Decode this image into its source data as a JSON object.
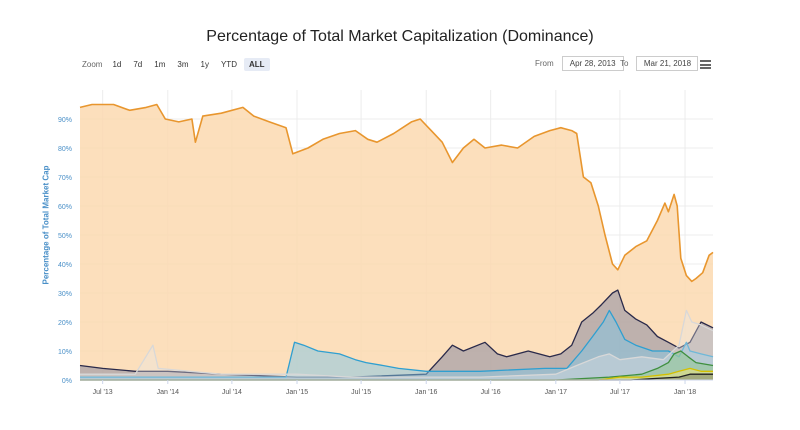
{
  "title": "Percentage of Total Market Capitalization (Dominance)",
  "zoom": {
    "label": "Zoom",
    "buttons": [
      "1d",
      "7d",
      "1m",
      "3m",
      "1y",
      "YTD",
      "ALL"
    ],
    "active": "ALL"
  },
  "range": {
    "from_label": "From",
    "from_value": "Apr 28, 2013",
    "to_label": "To",
    "to_value": "Mar 21, 2018"
  },
  "menu_icon": "hamburger-menu-icon",
  "chart_data": {
    "type": "area",
    "title": "Percentage of Total Market Capitalization (Dominance)",
    "ylabel": "Percentage of Total Market Cap",
    "xlabel": "",
    "ylim": [
      0,
      100
    ],
    "xlim": [
      "2013-04-28",
      "2018-03-21"
    ],
    "y_ticks": [
      "0%",
      "10%",
      "20%",
      "30%",
      "40%",
      "50%",
      "60%",
      "70%",
      "80%",
      "90%"
    ],
    "x_ticks": [
      {
        "label": "Jul '13",
        "date": "2013-07-01"
      },
      {
        "label": "Jan '14",
        "date": "2014-01-01"
      },
      {
        "label": "Jul '14",
        "date": "2014-07-01"
      },
      {
        "label": "Jan '15",
        "date": "2015-01-01"
      },
      {
        "label": "Jul '15",
        "date": "2015-07-01"
      },
      {
        "label": "Jan '16",
        "date": "2016-01-01"
      },
      {
        "label": "Jul '16",
        "date": "2016-07-01"
      },
      {
        "label": "Jan '17",
        "date": "2017-01-01"
      },
      {
        "label": "Jul '17",
        "date": "2017-07-01"
      },
      {
        "label": "Jan '18",
        "date": "2018-01-01"
      }
    ],
    "grid": true,
    "legend": "none",
    "series": [
      {
        "color": "#e8962e",
        "fill": "#fbd9b0",
        "fill_opacity": 0.85,
        "values": [
          [
            "2013-04-28",
            94
          ],
          [
            "2013-06-01",
            95
          ],
          [
            "2013-08-01",
            95
          ],
          [
            "2013-09-15",
            93
          ],
          [
            "2013-11-01",
            94
          ],
          [
            "2013-12-01",
            95
          ],
          [
            "2013-12-25",
            90
          ],
          [
            "2014-02-01",
            89
          ],
          [
            "2014-03-10",
            90
          ],
          [
            "2014-03-20",
            82
          ],
          [
            "2014-04-10",
            91
          ],
          [
            "2014-06-01",
            92
          ],
          [
            "2014-08-01",
            94
          ],
          [
            "2014-09-01",
            91
          ],
          [
            "2014-10-15",
            89
          ],
          [
            "2014-12-01",
            87
          ],
          [
            "2014-12-20",
            78
          ],
          [
            "2015-02-01",
            80
          ],
          [
            "2015-03-15",
            83
          ],
          [
            "2015-05-01",
            85
          ],
          [
            "2015-06-15",
            86
          ],
          [
            "2015-07-20",
            83
          ],
          [
            "2015-08-15",
            82
          ],
          [
            "2015-10-01",
            85
          ],
          [
            "2015-11-20",
            89
          ],
          [
            "2015-12-15",
            90
          ],
          [
            "2016-01-15",
            86
          ],
          [
            "2016-02-15",
            82
          ],
          [
            "2016-03-15",
            75
          ],
          [
            "2016-04-15",
            80
          ],
          [
            "2016-05-15",
            83
          ],
          [
            "2016-06-15",
            80
          ],
          [
            "2016-08-01",
            81
          ],
          [
            "2016-09-15",
            80
          ],
          [
            "2016-11-01",
            84
          ],
          [
            "2016-12-15",
            86
          ],
          [
            "2017-01-15",
            87
          ],
          [
            "2017-02-15",
            86
          ],
          [
            "2017-03-01",
            85
          ],
          [
            "2017-03-20",
            70
          ],
          [
            "2017-04-10",
            68
          ],
          [
            "2017-05-01",
            60
          ],
          [
            "2017-05-20",
            50
          ],
          [
            "2017-06-10",
            40
          ],
          [
            "2017-06-25",
            38
          ],
          [
            "2017-07-15",
            43
          ],
          [
            "2017-08-15",
            46
          ],
          [
            "2017-09-15",
            48
          ],
          [
            "2017-10-15",
            55
          ],
          [
            "2017-11-05",
            61
          ],
          [
            "2017-11-15",
            58
          ],
          [
            "2017-12-01",
            64
          ],
          [
            "2017-12-10",
            60
          ],
          [
            "2017-12-20",
            42
          ],
          [
            "2018-01-05",
            36
          ],
          [
            "2018-01-20",
            34
          ],
          [
            "2018-02-01",
            35
          ],
          [
            "2018-02-20",
            37
          ],
          [
            "2018-03-10",
            43
          ],
          [
            "2018-03-21",
            44
          ]
        ]
      },
      {
        "color": "#2a2a4a",
        "fill": "#8a8aa0",
        "fill_opacity": 0.55,
        "values": [
          [
            "2013-04-28",
            5
          ],
          [
            "2013-07-01",
            4
          ],
          [
            "2013-10-01",
            3
          ],
          [
            "2014-01-01",
            3
          ],
          [
            "2014-06-01",
            2
          ],
          [
            "2015-01-01",
            1
          ],
          [
            "2015-06-01",
            1
          ],
          [
            "2016-01-01",
            2
          ],
          [
            "2016-02-15",
            8
          ],
          [
            "2016-03-15",
            12
          ],
          [
            "2016-04-15",
            10
          ],
          [
            "2016-06-15",
            13
          ],
          [
            "2016-07-20",
            9
          ],
          [
            "2016-08-15",
            8
          ],
          [
            "2016-10-15",
            10
          ],
          [
            "2016-12-15",
            8
          ],
          [
            "2017-01-15",
            9
          ],
          [
            "2017-02-15",
            12
          ],
          [
            "2017-03-15",
            20
          ],
          [
            "2017-04-15",
            23
          ],
          [
            "2017-05-10",
            26
          ],
          [
            "2017-06-10",
            30
          ],
          [
            "2017-06-25",
            31
          ],
          [
            "2017-07-15",
            24
          ],
          [
            "2017-08-15",
            21
          ],
          [
            "2017-09-15",
            19
          ],
          [
            "2017-10-15",
            15
          ],
          [
            "2017-11-15",
            13
          ],
          [
            "2017-12-15",
            11
          ],
          [
            "2018-01-15",
            13
          ],
          [
            "2018-02-15",
            20
          ],
          [
            "2018-03-21",
            18
          ]
        ]
      },
      {
        "color": "#2f9fd0",
        "fill": "#7fc6e6",
        "fill_opacity": 0.5,
        "values": [
          [
            "2013-04-28",
            1
          ],
          [
            "2013-07-01",
            1
          ],
          [
            "2014-01-01",
            1
          ],
          [
            "2014-06-01",
            1
          ],
          [
            "2014-12-01",
            1
          ],
          [
            "2014-12-25",
            13
          ],
          [
            "2015-01-20",
            12
          ],
          [
            "2015-03-01",
            10
          ],
          [
            "2015-05-01",
            9
          ],
          [
            "2015-06-15",
            7
          ],
          [
            "2015-07-15",
            6
          ],
          [
            "2015-09-01",
            5
          ],
          [
            "2015-10-15",
            4
          ],
          [
            "2016-01-01",
            3
          ],
          [
            "2016-06-01",
            3
          ],
          [
            "2016-12-01",
            4
          ],
          [
            "2017-02-01",
            4
          ],
          [
            "2017-03-15",
            10
          ],
          [
            "2017-04-15",
            15
          ],
          [
            "2017-05-15",
            20
          ],
          [
            "2017-06-01",
            24
          ],
          [
            "2017-06-20",
            20
          ],
          [
            "2017-07-15",
            14
          ],
          [
            "2017-08-15",
            12
          ],
          [
            "2017-10-01",
            10
          ],
          [
            "2017-11-15",
            10
          ],
          [
            "2017-12-15",
            8
          ],
          [
            "2018-01-05",
            13
          ],
          [
            "2018-01-15",
            10
          ],
          [
            "2018-02-15",
            9
          ],
          [
            "2018-03-21",
            8
          ]
        ]
      },
      {
        "color": "#d8d8d8",
        "fill": "#e8e8e8",
        "fill_opacity": 0.35,
        "values": [
          [
            "2013-04-28",
            2
          ],
          [
            "2013-10-01",
            2
          ],
          [
            "2013-11-20",
            12
          ],
          [
            "2013-12-05",
            4
          ],
          [
            "2014-06-01",
            2
          ],
          [
            "2015-01-01",
            2
          ],
          [
            "2015-06-01",
            1
          ],
          [
            "2016-01-01",
            1
          ],
          [
            "2016-06-01",
            1
          ],
          [
            "2017-01-01",
            2
          ],
          [
            "2017-03-01",
            5
          ],
          [
            "2017-05-01",
            8
          ],
          [
            "2017-06-01",
            9
          ],
          [
            "2017-07-01",
            7
          ],
          [
            "2017-09-01",
            8
          ],
          [
            "2017-11-01",
            7
          ],
          [
            "2017-12-15",
            12
          ],
          [
            "2018-01-05",
            24
          ],
          [
            "2018-01-20",
            20
          ],
          [
            "2018-02-15",
            19
          ],
          [
            "2018-03-21",
            17
          ]
        ]
      },
      {
        "color": "#3f8f3f",
        "fill": "#90c690",
        "fill_opacity": 0.55,
        "values": [
          [
            "2013-04-28",
            0
          ],
          [
            "2017-01-01",
            0
          ],
          [
            "2017-06-01",
            1
          ],
          [
            "2017-09-01",
            2
          ],
          [
            "2017-10-15",
            4
          ],
          [
            "2017-11-15",
            6
          ],
          [
            "2017-12-01",
            9
          ],
          [
            "2017-12-20",
            10
          ],
          [
            "2018-01-10",
            8
          ],
          [
            "2018-02-01",
            6
          ],
          [
            "2018-03-21",
            5
          ]
        ]
      },
      {
        "color": "#d4c000",
        "fill": "#f0e57a",
        "fill_opacity": 0.55,
        "values": [
          [
            "2013-04-28",
            0
          ],
          [
            "2017-05-01",
            0
          ],
          [
            "2017-07-01",
            1
          ],
          [
            "2017-09-01",
            1
          ],
          [
            "2017-11-15",
            2
          ],
          [
            "2017-12-15",
            3
          ],
          [
            "2018-01-15",
            4
          ],
          [
            "2018-02-15",
            3
          ],
          [
            "2018-03-21",
            3
          ]
        ]
      },
      {
        "color": "#222222",
        "fill": "#555555",
        "fill_opacity": 0.35,
        "values": [
          [
            "2013-04-28",
            0
          ],
          [
            "2017-08-01",
            0
          ],
          [
            "2017-10-01",
            0.5
          ],
          [
            "2017-12-15",
            1
          ],
          [
            "2018-01-15",
            2
          ],
          [
            "2018-02-15",
            2
          ],
          [
            "2018-03-21",
            2
          ]
        ]
      }
    ]
  }
}
